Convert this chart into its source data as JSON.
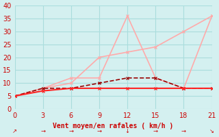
{
  "x": [
    0,
    3,
    6,
    9,
    12,
    15,
    18,
    21
  ],
  "line_gust_max": [
    5,
    8,
    12,
    12,
    36,
    12,
    8,
    36
  ],
  "line_gust_avg": [
    5,
    8,
    10,
    20,
    22,
    24,
    30,
    36
  ],
  "line_wind_dashed": [
    5,
    8,
    8,
    10,
    12,
    12,
    8,
    8
  ],
  "line_wind_solid": [
    5,
    7,
    8,
    8,
    8,
    8,
    8,
    8
  ],
  "xlabel": "Vent moyen/en rafales ( km/h )",
  "ylim": [
    0,
    40
  ],
  "xlim": [
    0,
    21
  ],
  "yticks": [
    0,
    5,
    10,
    15,
    20,
    25,
    30,
    35,
    40
  ],
  "xticks": [
    0,
    3,
    6,
    9,
    12,
    15,
    18,
    21
  ],
  "bg_color": "#d4f0f0",
  "grid_color": "#aadddd",
  "color_gust": "#ffaaaa",
  "color_wind_dark": "#990000",
  "color_wind_bright": "#ff2222",
  "arrow_dirs": [
    "↗",
    "→",
    "→",
    "→",
    "↓",
    "→",
    "→",
    "↘"
  ]
}
